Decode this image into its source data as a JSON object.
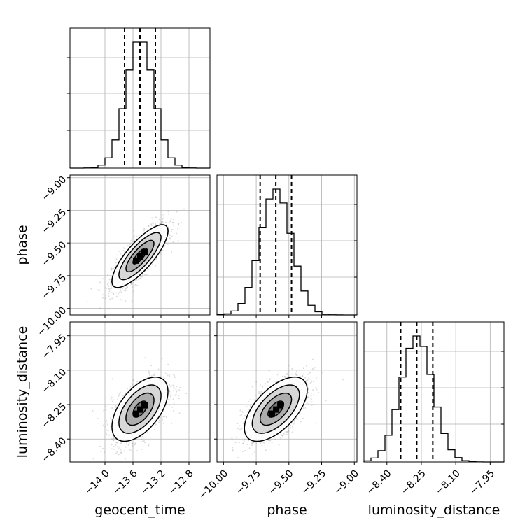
{
  "chart_data": {
    "type": "corner",
    "parameters": [
      "geocent_time",
      "phase",
      "luminosity_distance"
    ],
    "ranges": {
      "geocent_time": [
        -14.5,
        -12.5
      ],
      "phase": [
        -10.05,
        -8.98
      ],
      "luminosity_distance": [
        -8.5,
        -7.89
      ]
    },
    "ticks": {
      "geocent_time": [
        -14.0,
        -13.6,
        -13.2,
        -12.8
      ],
      "phase": [
        -10.0,
        -9.75,
        -9.5,
        -9.25,
        -9.0
      ],
      "luminosity_distance": [
        -8.4,
        -8.25,
        -8.1,
        -7.95
      ]
    },
    "tick_labels": {
      "geocent_time": [
        "−14.0",
        "−13.6",
        "−13.2",
        "−12.8"
      ],
      "phase": [
        "−10.00",
        "−9.75",
        "−9.50",
        "−9.25",
        "−9.00"
      ],
      "luminosity_distance": [
        "−8.40",
        "−8.25",
        "−8.10",
        "−7.95"
      ]
    },
    "diag_tick_labels": {
      "phase": [
        "−9.00",
        "−9.25",
        "−9.50",
        "−9.75",
        "−10.00"
      ],
      "luminosity_distance": [
        "−7.95",
        "−8.10",
        "−8.25",
        "−8.40"
      ]
    },
    "marginals": {
      "geocent_time": {
        "mean": -13.5,
        "sigma": 0.2,
        "quantiles": [
          -13.72,
          -13.5,
          -13.28
        ]
      },
      "phase": {
        "mean": -9.6,
        "sigma": 0.12,
        "quantiles": [
          -9.72,
          -9.6,
          -9.48
        ]
      },
      "luminosity_distance": {
        "mean": -8.27,
        "sigma": 0.07,
        "quantiles": [
          -8.34,
          -8.27,
          -8.2
        ]
      }
    },
    "correlations": {
      "phase_vs_geocent_time": 0.8,
      "luminosity_distance_vs_geocent_time": 0.55,
      "luminosity_distance_vs_phase": 0.6
    },
    "contour_levels": [
      "0.5-sigma",
      "1-sigma",
      "1.5-sigma",
      "2-sigma"
    ],
    "grid": true,
    "colors": {
      "points": "#9a9a9a",
      "line": "#000000",
      "grid": "#b0b0b0"
    }
  },
  "axis_labels": {
    "x_bottom": [
      "geocent_time",
      "phase",
      "luminosity_distance"
    ],
    "y_left": [
      "phase",
      "luminosity_distance"
    ]
  }
}
